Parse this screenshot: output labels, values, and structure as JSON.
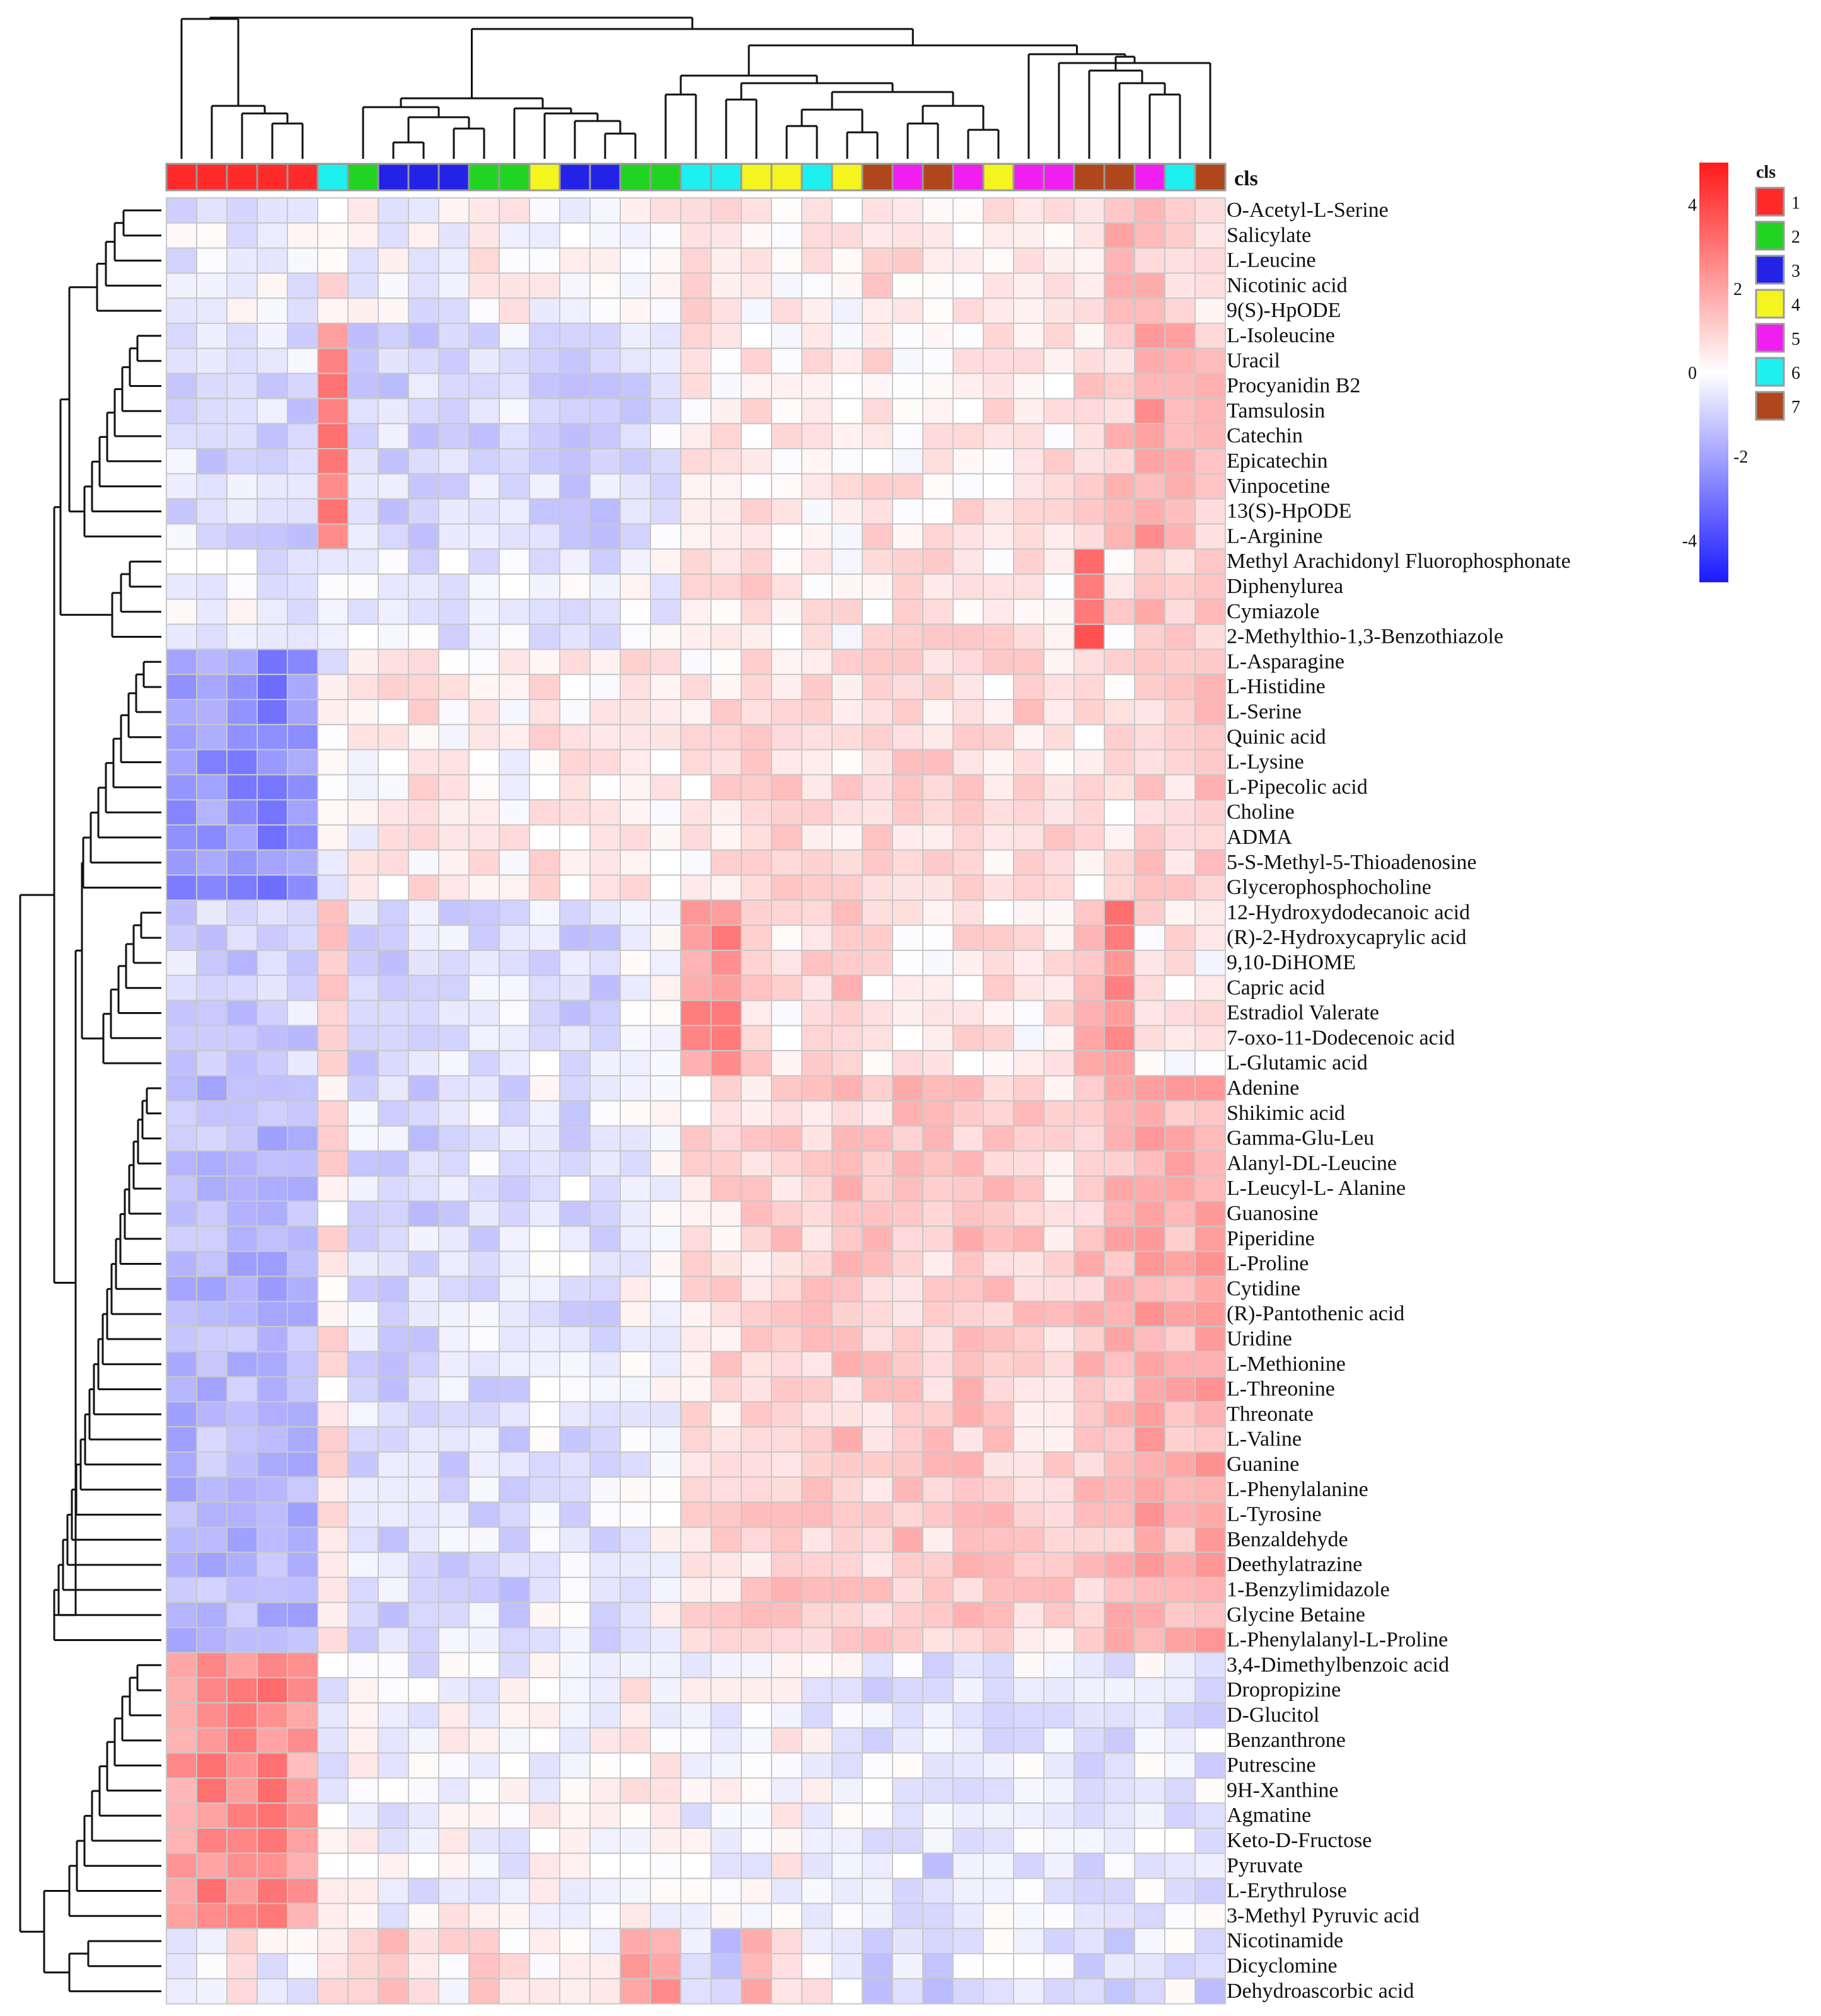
{
  "chart_data": {
    "type": "heatmap",
    "title": "",
    "annotation_label": "cls",
    "legend_title": "cls",
    "column_classes": [
      1,
      1,
      1,
      1,
      1,
      6,
      2,
      3,
      3,
      3,
      2,
      2,
      4,
      3,
      3,
      2,
      2,
      6,
      6,
      4,
      4,
      6,
      4,
      7,
      5,
      7,
      5,
      4,
      5,
      5,
      7,
      7,
      5,
      6,
      7
    ],
    "class_legend": [
      {
        "label": "1",
        "color": "#ff2a2a"
      },
      {
        "label": "2",
        "color": "#22d422"
      },
      {
        "label": "3",
        "color": "#2323e8"
      },
      {
        "label": "4",
        "color": "#f4f41e"
      },
      {
        "label": "5",
        "color": "#f01ef0"
      },
      {
        "label": "6",
        "color": "#1ef0f0"
      },
      {
        "label": "7",
        "color": "#b0461c"
      }
    ],
    "color_scale": {
      "min": -5,
      "max": 5,
      "low_color": "#1a1aff",
      "mid_color": "#ffffff",
      "high_color": "#ff1a1a",
      "ticks": [
        "4",
        "2",
        "0",
        "-2",
        "-4"
      ]
    },
    "rows": [
      "O-Acetyl-L-Serine",
      "Salicylate",
      "L-Leucine",
      "Nicotinic acid",
      "9(S)-HpODE",
      "L-Isoleucine",
      "Uracil",
      "Procyanidin B2",
      "Tamsulosin",
      "Catechin",
      "Epicatechin",
      "Vinpocetine",
      "13(S)-HpODE",
      "L-Arginine",
      "Methyl Arachidonyl Fluorophosphonate",
      "Diphenylurea",
      "Cymiazole",
      "2-Methylthio-1,3-Benzothiazole",
      "L-Asparagine",
      "L-Histidine",
      "L-Serine",
      "Quinic acid",
      "L-Lysine",
      "L-Pipecolic acid",
      "Choline",
      "ADMA",
      "5-S-Methyl-5-Thioadenosine",
      "Glycerophosphocholine",
      "12-Hydroxydodecanoic acid",
      "(R)-2-Hydroxycaprylic acid",
      "9,10-DiHOME",
      "Capric acid",
      "Estradiol Valerate",
      "7-oxo-11-Dodecenoic acid",
      "L-Glutamic acid",
      "Adenine",
      "Shikimic acid",
      "Gamma-Glu-Leu",
      "Alanyl-DL-Leucine",
      "L-Leucyl-L- Alanine",
      "Guanosine",
      "Piperidine",
      "L-Proline",
      "Cytidine",
      "(R)-Pantothenic acid",
      "Uridine",
      "L-Methionine",
      "L-Threonine",
      "Threonate",
      "L-Valine",
      "Guanine",
      "L-Phenylalanine",
      "L-Tyrosine",
      "Benzaldehyde",
      "Deethylatrazine",
      "1-Benzylimidazole",
      "Glycine Betaine",
      "L-Phenylalanyl-L-Proline",
      "3,4-Dimethylbenzoic acid",
      "Dropropizine",
      "D-Glucitol",
      "Benzanthrone",
      "Putrescine",
      "9H-Xanthine",
      "Agmatine",
      "Keto-D-Fructose",
      "Pyruvate",
      "L-Erythrulose",
      "3-Methyl Pyruvic acid",
      "Nicotinamide",
      "Dicyclomine",
      "Dehydroascorbic acid"
    ],
    "row_pattern": [
      "A",
      "A",
      "A",
      "A",
      "A",
      "B",
      "B",
      "B",
      "B",
      "B",
      "B",
      "B",
      "B",
      "B",
      "C",
      "C",
      "C",
      "C",
      "D",
      "D",
      "D",
      "D",
      "D",
      "D",
      "D",
      "D",
      "D",
      "D",
      "E",
      "E",
      "E",
      "E",
      "E",
      "E",
      "E",
      "F",
      "F",
      "F",
      "F",
      "F",
      "F",
      "F",
      "F",
      "F",
      "F",
      "F",
      "F",
      "F",
      "F",
      "F",
      "F",
      "F",
      "F",
      "F",
      "F",
      "F",
      "F",
      "F",
      "G",
      "G",
      "G",
      "G",
      "G",
      "G",
      "G",
      "G",
      "G",
      "G",
      "G",
      "H",
      "H",
      "H"
    ],
    "pattern_profiles": {
      "A": [
        -0.4,
        -0.2,
        -0.3,
        -0.3,
        -0.2,
        0.6,
        -0.1,
        -0.2,
        -0.3,
        -0.3,
        0.2,
        0.3,
        -0.1,
        -0.2,
        -0.2,
        0.2,
        0.1,
        0.5,
        0.6,
        0.2,
        0.4,
        0.4,
        0.3,
        0.7,
        0.6,
        0.4,
        0.3,
        0.3,
        0.3,
        0.2,
        0.8,
        1.4,
        1.2,
        1.0,
        0.6
      ],
      "B": [
        -0.8,
        -0.8,
        -0.8,
        -0.8,
        -0.8,
        2.5,
        -0.9,
        -0.9,
        -0.9,
        -0.9,
        -0.8,
        -0.8,
        -0.7,
        -0.9,
        -0.9,
        -0.7,
        -0.6,
        0.3,
        0.4,
        0.5,
        0.4,
        0.4,
        0.4,
        0.6,
        0.4,
        0.5,
        0.5,
        0.6,
        0.6,
        0.5,
        0.8,
        1.2,
        2.0,
        1.5,
        1.2
      ],
      "C": [
        -0.4,
        -0.4,
        -0.3,
        -0.4,
        -0.5,
        -0.3,
        -0.5,
        -0.6,
        -0.7,
        -0.6,
        -0.6,
        -0.5,
        -0.4,
        -0.5,
        -0.5,
        -0.3,
        -0.3,
        0.3,
        0.6,
        0.7,
        0.5,
        0.4,
        0.4,
        0.6,
        0.5,
        0.7,
        0.6,
        0.5,
        0.5,
        0.5,
        3.2,
        0.6,
        1.6,
        1.0,
        1.2
      ],
      "D": [
        -2.2,
        -2.2,
        -2.4,
        -2.6,
        -2.4,
        -0.2,
        0.1,
        0.4,
        0.5,
        0.4,
        0.3,
        0.2,
        0.6,
        0.5,
        0.5,
        0.4,
        0.3,
        0.5,
        0.6,
        0.7,
        0.8,
        0.8,
        0.7,
        0.9,
        1.0,
        0.8,
        0.7,
        0.6,
        0.9,
        0.7,
        0.6,
        0.5,
        0.9,
        1.0,
        1.1
      ],
      "E": [
        -1.0,
        -1.0,
        -1.0,
        -1.0,
        -0.9,
        0.8,
        -0.9,
        -0.8,
        -0.8,
        -0.8,
        -0.7,
        -0.7,
        -0.6,
        -0.8,
        -0.8,
        -0.3,
        -0.2,
        2.2,
        2.4,
        0.7,
        0.5,
        0.8,
        1.2,
        0.6,
        0.4,
        0.5,
        0.6,
        0.5,
        0.4,
        0.4,
        1.6,
        2.6,
        0.5,
        0.4,
        0.3
      ],
      "F": [
        -1.6,
        -1.5,
        -1.6,
        -1.6,
        -1.5,
        0.6,
        -0.8,
        -0.8,
        -0.9,
        -0.8,
        -0.7,
        -0.9,
        -0.4,
        -0.6,
        -0.6,
        -0.2,
        0.0,
        0.6,
        0.8,
        0.9,
        1.1,
        1.0,
        1.2,
        1.1,
        1.2,
        1.0,
        1.2,
        1.1,
        1.0,
        0.9,
        1.3,
        1.5,
        2.0,
        1.6,
        1.8
      ],
      "G": [
        2.2,
        2.5,
        2.4,
        2.6,
        2.0,
        -0.2,
        0.1,
        -0.3,
        -0.4,
        0.1,
        -0.2,
        -0.3,
        -0.1,
        -0.1,
        0.0,
        0.3,
        0.1,
        -0.2,
        -0.1,
        -0.2,
        0.1,
        -0.2,
        -0.3,
        -0.6,
        -0.4,
        -0.8,
        -0.5,
        -0.4,
        -0.5,
        -0.6,
        -0.5,
        -0.6,
        -0.4,
        -0.6,
        -0.5
      ],
      "H": [
        -0.4,
        -0.2,
        0.6,
        -0.2,
        -0.3,
        0.4,
        1.2,
        1.0,
        0.6,
        0.4,
        0.8,
        0.6,
        0.3,
        0.4,
        0.2,
        2.0,
        2.2,
        -0.8,
        -1.0,
        1.8,
        0.6,
        0.2,
        -0.3,
        -0.8,
        -0.5,
        -1.0,
        -0.6,
        -0.3,
        -0.4,
        -0.6,
        -1.2,
        -0.8,
        -0.6,
        -0.4,
        -0.9
      ]
    }
  }
}
